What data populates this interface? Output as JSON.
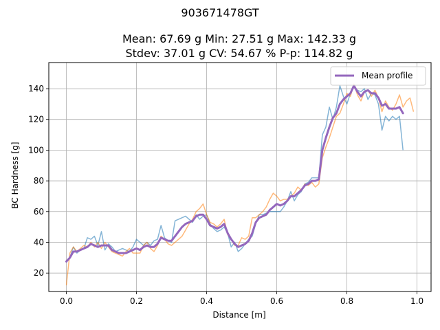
{
  "chart_data": {
    "type": "line",
    "title": "903671478GT",
    "stats_line1": "Mean: 67.69 g    Min: 27.51 g    Max: 142.33 g",
    "stats_line2": "Stdev: 37.01 g    CV: 54.67 %    P-p: 114.82 g",
    "xlabel": "Distance [m]",
    "ylabel": "BC Hardness [g]",
    "xlim": [
      -0.05,
      1.04
    ],
    "ylim": [
      8,
      157
    ],
    "xticks": [
      0.0,
      0.2,
      0.4,
      0.6,
      0.8,
      1.0
    ],
    "xtick_labels": [
      "0.0",
      "0.2",
      "0.4",
      "0.6",
      "0.8",
      "1.0"
    ],
    "yticks": [
      20,
      40,
      60,
      80,
      100,
      120,
      140
    ],
    "ytick_labels": [
      "20",
      "40",
      "60",
      "80",
      "100",
      "120",
      "140"
    ],
    "grid": true,
    "legend": {
      "position": "top-right",
      "entries": [
        "Mean profile"
      ]
    },
    "colors": {
      "series_blue": "#1f77b4",
      "series_orange": "#ff7f0e",
      "mean": "#9467bd"
    },
    "series": [
      {
        "color": "#1f77b4",
        "x": [
          0.0,
          0.01,
          0.02,
          0.03,
          0.04,
          0.05,
          0.06,
          0.07,
          0.08,
          0.09,
          0.1,
          0.11,
          0.12,
          0.13,
          0.14,
          0.15,
          0.16,
          0.17,
          0.18,
          0.19,
          0.2,
          0.21,
          0.22,
          0.23,
          0.24,
          0.25,
          0.26,
          0.27,
          0.28,
          0.29,
          0.3,
          0.31,
          0.32,
          0.33,
          0.34,
          0.35,
          0.36,
          0.37,
          0.38,
          0.39,
          0.4,
          0.41,
          0.42,
          0.43,
          0.44,
          0.45,
          0.46,
          0.47,
          0.48,
          0.49,
          0.5,
          0.51,
          0.52,
          0.53,
          0.54,
          0.55,
          0.56,
          0.57,
          0.58,
          0.59,
          0.6,
          0.61,
          0.62,
          0.63,
          0.64,
          0.65,
          0.66,
          0.67,
          0.68,
          0.69,
          0.7,
          0.71,
          0.72,
          0.73,
          0.74,
          0.75,
          0.76,
          0.77,
          0.78,
          0.79,
          0.8,
          0.81,
          0.82,
          0.83,
          0.84,
          0.85,
          0.86,
          0.87,
          0.88,
          0.89,
          0.9,
          0.91,
          0.92,
          0.93,
          0.94,
          0.95,
          0.96
        ],
        "y": [
          27,
          30,
          37,
          33,
          35,
          36,
          43,
          42,
          44,
          38,
          47,
          35,
          39,
          37,
          34,
          35,
          36,
          35,
          34,
          37,
          42,
          40,
          38,
          40,
          38,
          41,
          42,
          51,
          43,
          41,
          40,
          54,
          55,
          56,
          57,
          55,
          53,
          58,
          55,
          57,
          58,
          52,
          49,
          47,
          48,
          50,
          46,
          37,
          40,
          34,
          36,
          39,
          42,
          44,
          52,
          58,
          58,
          59,
          60,
          60,
          60,
          60,
          63,
          67,
          73,
          67,
          71,
          73,
          78,
          79,
          82,
          82,
          82,
          110,
          115,
          128,
          120,
          128,
          142,
          135,
          130,
          137,
          141,
          139,
          138,
          140,
          133,
          137,
          136,
          130,
          113,
          122,
          119,
          122,
          120,
          122,
          100
        ]
      },
      {
        "color": "#ff7f0e",
        "x": [
          0.0,
          0.01,
          0.02,
          0.03,
          0.04,
          0.05,
          0.06,
          0.07,
          0.08,
          0.09,
          0.1,
          0.11,
          0.12,
          0.13,
          0.14,
          0.15,
          0.16,
          0.17,
          0.18,
          0.19,
          0.2,
          0.21,
          0.22,
          0.23,
          0.24,
          0.25,
          0.26,
          0.27,
          0.28,
          0.29,
          0.3,
          0.31,
          0.32,
          0.33,
          0.34,
          0.35,
          0.36,
          0.37,
          0.38,
          0.39,
          0.4,
          0.41,
          0.42,
          0.43,
          0.44,
          0.45,
          0.46,
          0.47,
          0.48,
          0.49,
          0.5,
          0.51,
          0.52,
          0.53,
          0.54,
          0.55,
          0.56,
          0.57,
          0.58,
          0.59,
          0.6,
          0.61,
          0.62,
          0.63,
          0.64,
          0.65,
          0.66,
          0.67,
          0.68,
          0.69,
          0.7,
          0.71,
          0.72,
          0.73,
          0.74,
          0.75,
          0.76,
          0.77,
          0.78,
          0.79,
          0.8,
          0.81,
          0.82,
          0.83,
          0.84,
          0.85,
          0.86,
          0.87,
          0.88,
          0.89,
          0.9,
          0.91,
          0.92,
          0.93,
          0.94,
          0.95,
          0.96,
          0.97,
          0.98,
          0.99
        ],
        "y": [
          12,
          33,
          37,
          34,
          36,
          38,
          37,
          40,
          37,
          40,
          36,
          40,
          37,
          34,
          33,
          32,
          31,
          34,
          36,
          33,
          33,
          33,
          38,
          40,
          36,
          34,
          38,
          44,
          42,
          39,
          38,
          40,
          42,
          44,
          48,
          52,
          55,
          60,
          62,
          65,
          58,
          53,
          52,
          50,
          52,
          55,
          45,
          42,
          38,
          38,
          43,
          42,
          44,
          56,
          56,
          58,
          60,
          63,
          68,
          72,
          70,
          67,
          68,
          68,
          70,
          72,
          76,
          74,
          78,
          77,
          79,
          76,
          78,
          95,
          102,
          108,
          115,
          122,
          124,
          130,
          137,
          135,
          143,
          136,
          132,
          138,
          139,
          135,
          139,
          134,
          125,
          132,
          128,
          126,
          130,
          136,
          128,
          132,
          134,
          125
        ]
      }
    ],
    "mean_profile": {
      "name": "Mean profile",
      "color": "#9467bd",
      "x": [
        0.0,
        0.01,
        0.02,
        0.03,
        0.04,
        0.05,
        0.06,
        0.07,
        0.08,
        0.09,
        0.1,
        0.11,
        0.12,
        0.13,
        0.14,
        0.15,
        0.16,
        0.17,
        0.18,
        0.19,
        0.2,
        0.21,
        0.22,
        0.23,
        0.24,
        0.25,
        0.26,
        0.27,
        0.28,
        0.29,
        0.3,
        0.31,
        0.32,
        0.33,
        0.34,
        0.35,
        0.36,
        0.37,
        0.38,
        0.39,
        0.4,
        0.41,
        0.42,
        0.43,
        0.44,
        0.45,
        0.46,
        0.47,
        0.48,
        0.49,
        0.5,
        0.51,
        0.52,
        0.53,
        0.54,
        0.55,
        0.56,
        0.57,
        0.58,
        0.59,
        0.6,
        0.61,
        0.62,
        0.63,
        0.64,
        0.65,
        0.66,
        0.67,
        0.68,
        0.69,
        0.7,
        0.71,
        0.72,
        0.73,
        0.74,
        0.75,
        0.76,
        0.77,
        0.78,
        0.79,
        0.8,
        0.81,
        0.82,
        0.83,
        0.84,
        0.85,
        0.86,
        0.87,
        0.88,
        0.89,
        0.9,
        0.91,
        0.92,
        0.93,
        0.94,
        0.95,
        0.96
      ],
      "y": [
        27.5,
        30,
        34,
        34,
        35,
        36,
        37,
        39,
        38,
        37,
        38,
        38,
        38,
        35,
        34,
        33,
        33,
        33,
        34,
        35,
        36,
        35,
        37,
        38,
        37,
        37,
        39,
        43,
        42,
        41,
        41,
        44,
        47,
        50,
        52,
        53,
        54,
        57,
        58,
        58,
        55,
        51,
        50,
        49,
        50,
        52,
        46,
        42,
        39,
        37,
        38,
        39,
        41,
        46,
        53,
        56,
        57,
        58,
        61,
        63,
        65,
        64,
        65,
        67,
        70,
        70,
        72,
        74,
        77,
        78,
        80,
        80,
        81,
        100,
        108,
        115,
        121,
        124,
        130,
        133,
        135,
        137,
        142,
        138,
        135,
        138,
        139,
        137,
        137,
        134,
        129,
        130,
        127,
        127,
        127,
        128,
        124
      ]
    }
  }
}
